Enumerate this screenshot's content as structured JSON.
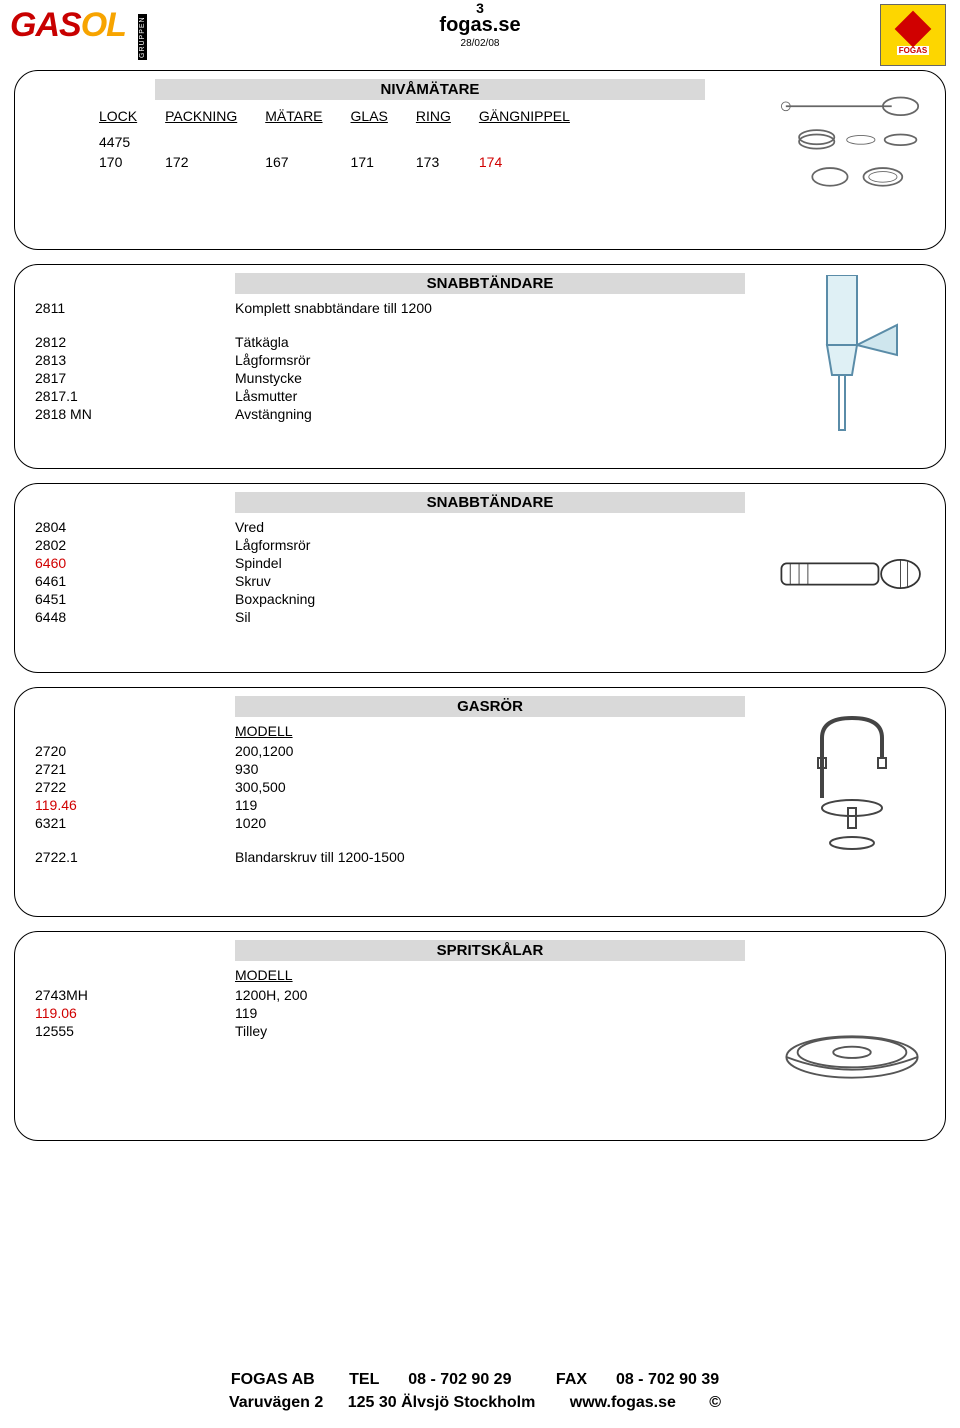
{
  "header": {
    "page_number": "3",
    "site": "fogas.se",
    "date": "28/02/08",
    "logo_left": {
      "text_red": "GAS",
      "text_orange": "OL",
      "gruppen": "GRUPPEN"
    },
    "logo_right": {
      "brand": "FOGAS",
      "bg_color": "#fdd600",
      "diamond_color": "#d00000"
    }
  },
  "sections": {
    "nivamatare": {
      "title": "NIVÅMÄTARE",
      "headers": [
        "LOCK",
        "PACKNING",
        "MÄTARE",
        "GLAS",
        "RING",
        "GÄNGNIPPEL"
      ],
      "top_code": "4475",
      "row": [
        "170",
        "172",
        "167",
        "171",
        "173",
        "174"
      ],
      "row_colors": [
        "#000",
        "#000",
        "#000",
        "#000",
        "#000",
        "#d00000"
      ]
    },
    "snabb1": {
      "title": "SNABBTÄNDARE",
      "rows": [
        {
          "c1": "2811",
          "c2": "Komplett snabbtändare till 1200",
          "spacer_after": true
        },
        {
          "c1": "2812",
          "c2": "Tätkägla"
        },
        {
          "c1": "2813",
          "c2": "Lågformsrör"
        },
        {
          "c1": "2817",
          "c2": "Munstycke"
        },
        {
          "c1": "2817.1",
          "c2": "Låsmutter"
        },
        {
          "c1": "2818 MN",
          "c2": "Avstängning"
        }
      ]
    },
    "snabb2": {
      "title": "SNABBTÄNDARE",
      "rows": [
        {
          "c1": "2804",
          "c2": "Vred"
        },
        {
          "c1": "2802",
          "c2": "Lågformsrör"
        },
        {
          "c1": "6460",
          "c2": "Spindel",
          "c1_color": "#d00000"
        },
        {
          "c1": "6461",
          "c2": "Skruv"
        },
        {
          "c1": "6451",
          "c2": "Boxpackning"
        },
        {
          "c1": "6448",
          "c2": "Sil"
        }
      ]
    },
    "gasror": {
      "title": "GASRÖR",
      "subtitle": "MODELL",
      "rows": [
        {
          "c1": "2720",
          "c2": "200,1200"
        },
        {
          "c1": "2721",
          "c2": "930"
        },
        {
          "c1": "2722",
          "c2": "300,500"
        },
        {
          "c1": "119.46",
          "c2": "119",
          "c1_color": "#d00000"
        },
        {
          "c1": "6321",
          "c2": "1020"
        },
        {
          "spacer_after": true
        },
        {
          "c1": "2722.1",
          "c2": "Blandarskruv till 1200-1500"
        }
      ]
    },
    "spritskalar": {
      "title": "SPRITSKÅLAR",
      "subtitle": "MODELL",
      "rows": [
        {
          "c1": "2743MH",
          "c2": "1200H, 200"
        },
        {
          "c1": "119.06",
          "c2": "119",
          "c1_color": "#d00000"
        },
        {
          "c1": "12555",
          "c2": "Tilley"
        }
      ]
    }
  },
  "footer": {
    "company": "FOGAS AB",
    "tel_label": "TEL",
    "tel": "08 - 702 90 29",
    "fax_label": "FAX",
    "fax": "08 - 702 90 39",
    "addr1": "Varuvägen 2",
    "addr2": "125 30 Älvsjö Stockholm",
    "web": "www.fogas.se",
    "copy": "©"
  }
}
